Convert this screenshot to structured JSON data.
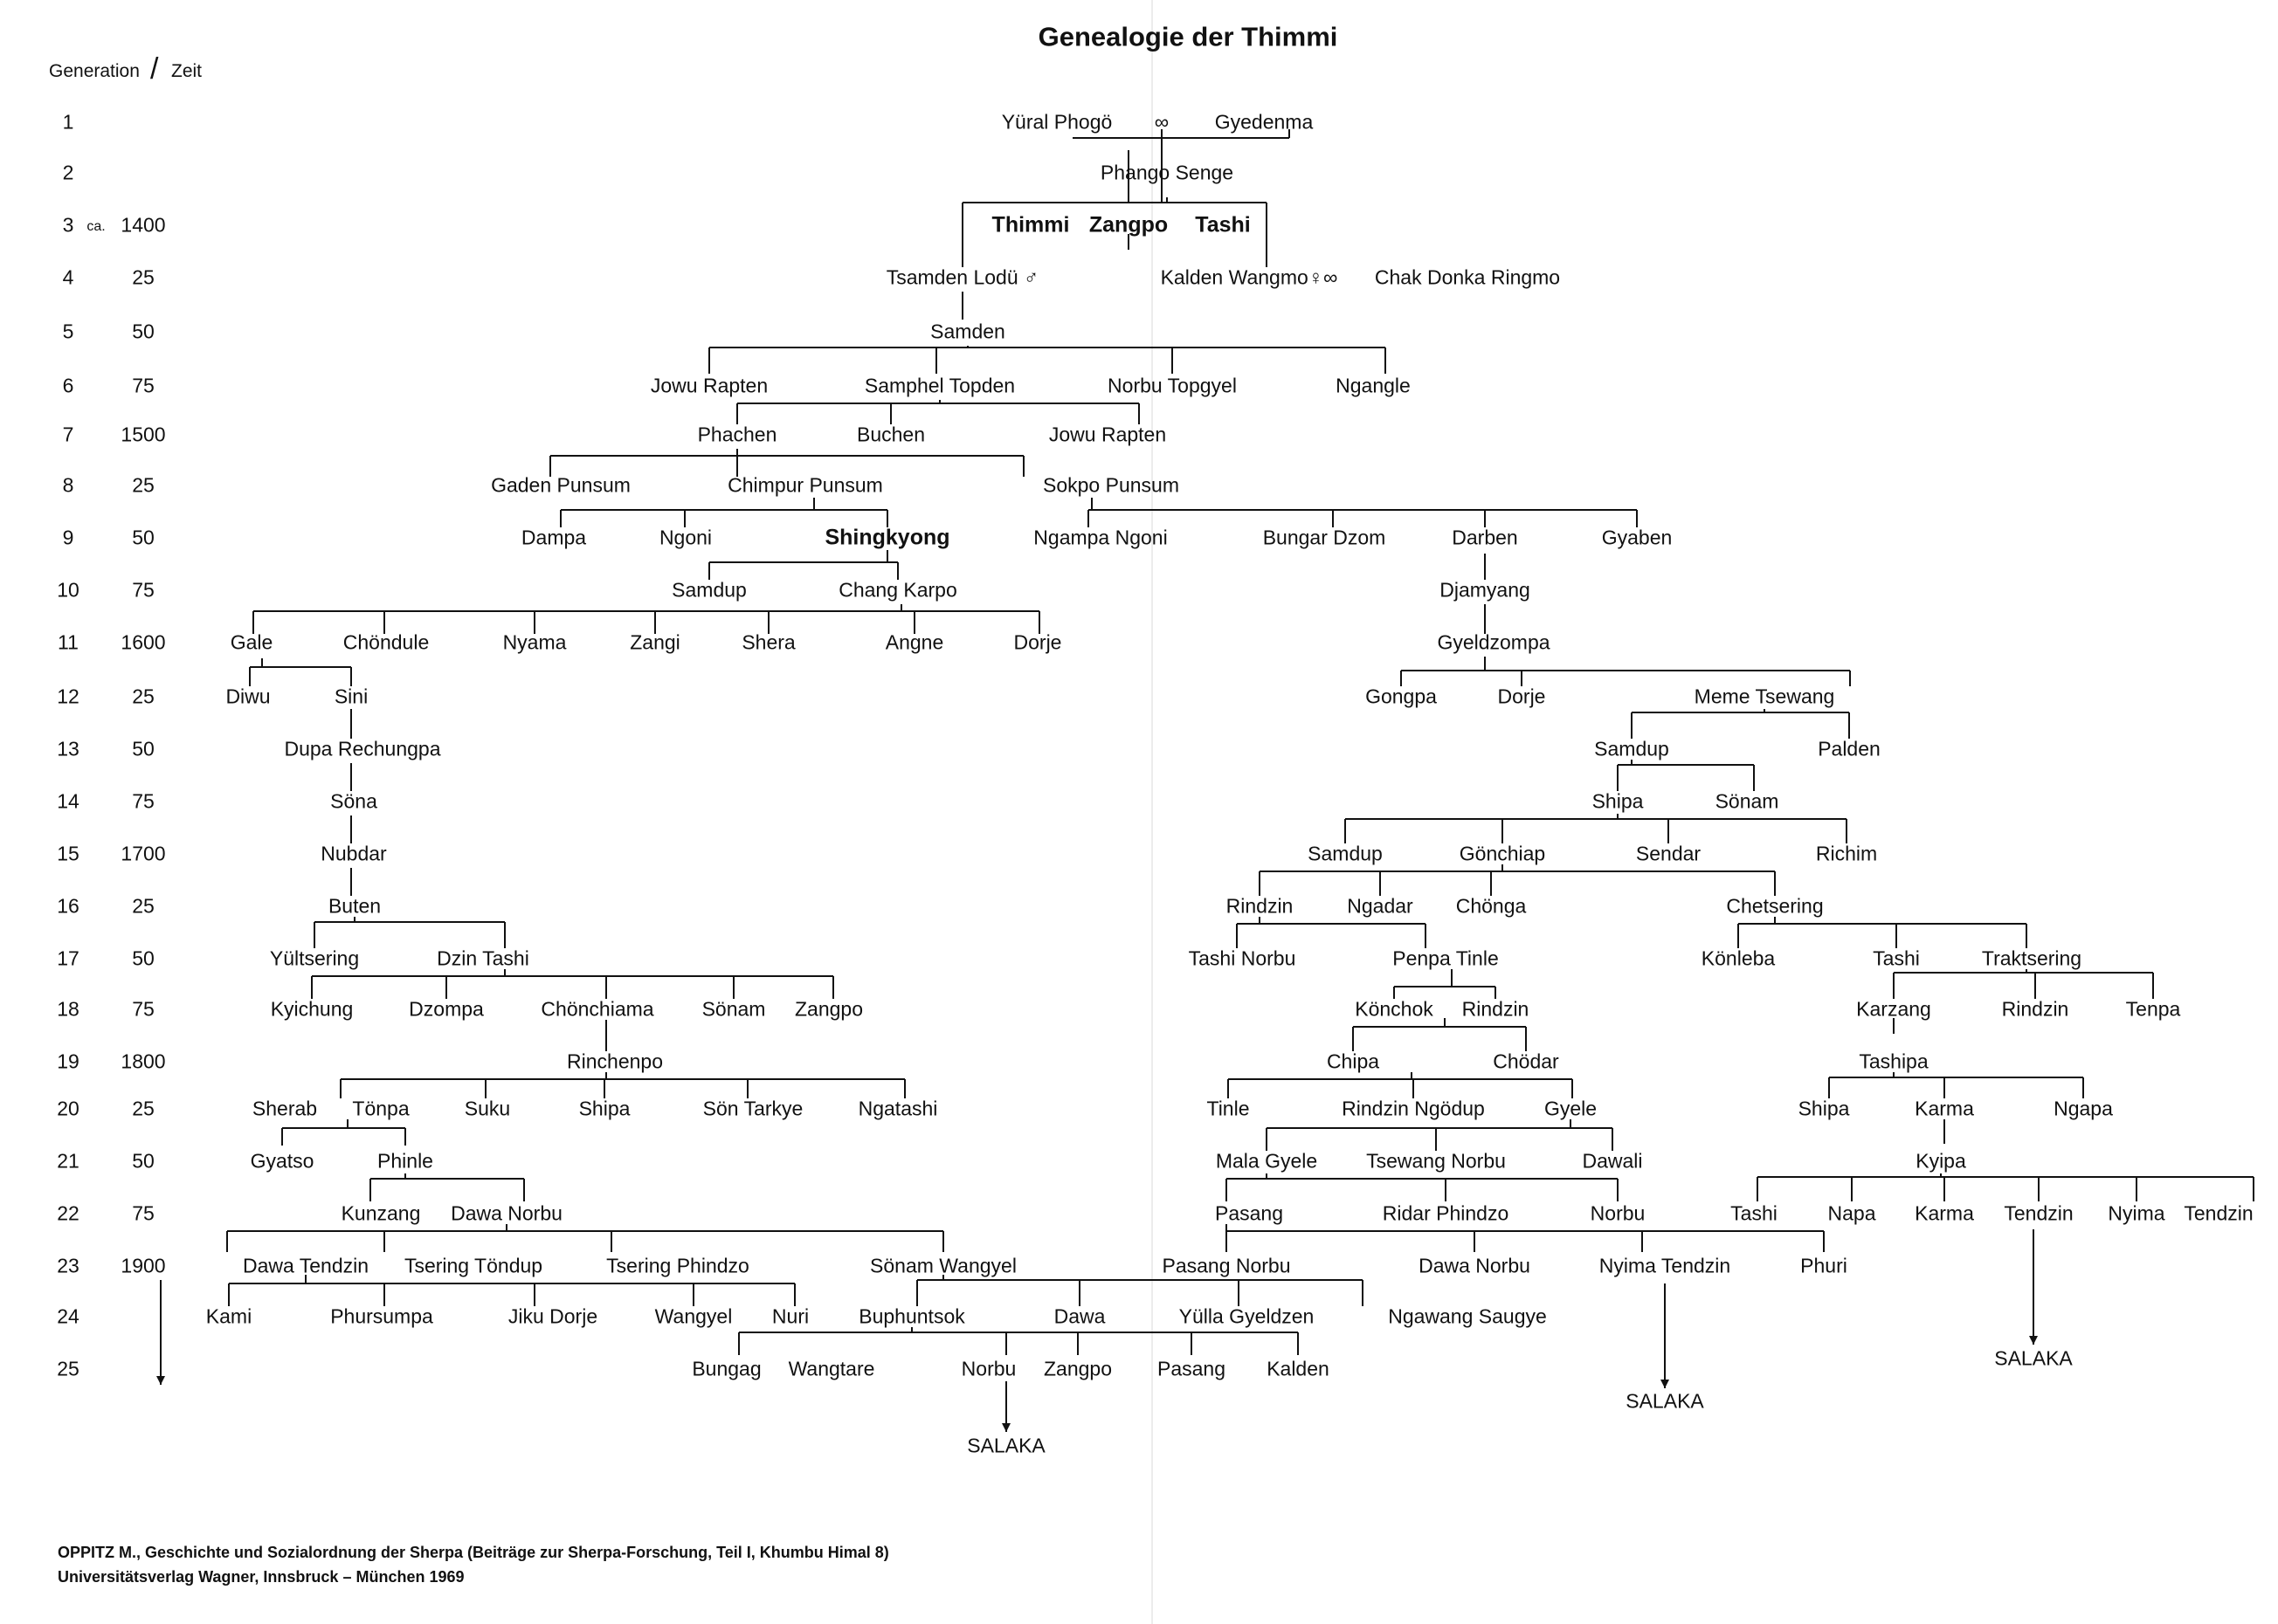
{
  "title": "Genealogie der Thimmi",
  "header": {
    "generation": "Generation",
    "slash": "/",
    "zeit": "Zeit"
  },
  "generations": [
    {
      "num": "1",
      "year": ""
    },
    {
      "num": "2",
      "year": ""
    },
    {
      "num": "3",
      "ca": "ca.",
      "year": "1400"
    },
    {
      "num": "4",
      "year": "25"
    },
    {
      "num": "5",
      "year": "50"
    },
    {
      "num": "6",
      "year": "75"
    },
    {
      "num": "7",
      "year": "1500"
    },
    {
      "num": "8",
      "year": "25"
    },
    {
      "num": "9",
      "year": "50"
    },
    {
      "num": "10",
      "year": "75"
    },
    {
      "num": "11",
      "year": "1600"
    },
    {
      "num": "12",
      "year": "25"
    },
    {
      "num": "13",
      "year": "50"
    },
    {
      "num": "14",
      "year": "75"
    },
    {
      "num": "15",
      "year": "1700"
    },
    {
      "num": "16",
      "year": "25"
    },
    {
      "num": "17",
      "year": "50"
    },
    {
      "num": "18",
      "year": "75"
    },
    {
      "num": "19",
      "year": "1800"
    },
    {
      "num": "20",
      "year": "25"
    },
    {
      "num": "21",
      "year": "50"
    },
    {
      "num": "22",
      "year": "75"
    },
    {
      "num": "23",
      "year": "1900"
    },
    {
      "num": "24",
      "year": ""
    },
    {
      "num": "25",
      "year": ""
    }
  ],
  "persons": {
    "g1_yural": "Yüral Phogö",
    "g1_marriage": "∞",
    "g1_gyedenma": "Gyedenma",
    "g2_phango": "Phango Senge",
    "g3_thimmi": "Thimmi",
    "g3_zangpo": "Zangpo",
    "g3_tashi": "Tashi",
    "g4_tsamden": "Tsamden Lodü ♂",
    "g4_kalden": "Kalden Wangmo♀∞",
    "g4_chak": "Chak Donka Ringmo",
    "g5_samden": "Samden",
    "g6_jowu": "Jowu Rapten",
    "g6_samphel": "Samphel Topden",
    "g6_norbu": "Norbu Topgyel",
    "g6_ngangle": "Ngangle",
    "g7_phachen": "Phachen",
    "g7_buchen": "Buchen",
    "g7_jowu": "Jowu Rapten",
    "g8_gaden": "Gaden Punsum",
    "g8_chimpur": "Chimpur Punsum",
    "g8_sokpo": "Sokpo Punsum",
    "g9_dampa": "Dampa",
    "g9_ngoni": "Ngoni",
    "g9_shingkyong": "Shingkyong",
    "g9_ngampa": "Ngampa Ngoni",
    "g9_bungar": "Bungar Dzom",
    "g9_darben": "Darben",
    "g9_gyaben": "Gyaben",
    "g10_samdup": "Samdup",
    "g10_chang": "Chang Karpo",
    "g10_djamyang": "Djamyang",
    "g11_gale": "Gale",
    "g11_chondule": "Chöndule",
    "g11_nyama": "Nyama",
    "g11_zangi": "Zangi",
    "g11_shera": "Shera",
    "g11_angne": "Angne",
    "g11_dorje": "Dorje",
    "g11_gyeldzompa": "Gyeldzompa",
    "g12_diwu": "Diwu",
    "g12_sini": "Sini",
    "g12_gongpa": "Gongpa",
    "g12_dorje": "Dorje",
    "g12_meme": "Meme Tsewang",
    "g13_dupa": "Dupa Rechungpa",
    "g13_samdup": "Samdup",
    "g13_palden": "Palden",
    "g14_sona": "Söna",
    "g14_shipa": "Shipa",
    "g14_sonam": "Sönam",
    "g15_nubdar": "Nubdar",
    "g15_samdup": "Samdup",
    "g15_gonchiap": "Gönchiap",
    "g15_sendar": "Sendar",
    "g15_richim": "Richim",
    "g16_buten": "Buten",
    "g16_rindzin": "Rindzin",
    "g16_ngadar": "Ngadar",
    "g16_chonga": "Chönga",
    "g16_chetsering": "Chetsering",
    "g17_yultsering": "Yültsering",
    "g17_dzintashi": "Dzin Tashi",
    "g17_tashinorbu": "Tashi Norbu",
    "g17_penpa": "Penpa Tinle",
    "g17_konleba": "Könleba",
    "g17_tashi": "Tashi",
    "g17_traktsering": "Traktsering",
    "g18_kyichung": "Kyichung",
    "g18_dzompa": "Dzompa",
    "g18_chonchiama": "Chönchiama",
    "g18_sonam": "Sönam",
    "g18_zangpo": "Zangpo",
    "g18_konchok": "Könchok",
    "g18_rindzin": "Rindzin",
    "g18_karzang": "Karzang",
    "g18_rindzin2": "Rindzin",
    "g18_tenpa": "Tenpa",
    "g19_rinchenpo": "Rinchenpo",
    "g19_chipa": "Chipa",
    "g19_chodar": "Chödar",
    "g19_tashipa": "Tashipa",
    "g20_sherab": "Sherab",
    "g20_tonpa": "Tönpa",
    "g20_suku": "Suku",
    "g20_shipa": "Shipa",
    "g20_son": "Sön Tarkye",
    "g20_ngatashi": "Ngatashi",
    "g20_tinle": "Tinle",
    "g20_rindzin": "Rindzin Ngödup",
    "g20_gyele": "Gyele",
    "g20_shipa2": "Shipa",
    "g20_karma": "Karma",
    "g20_ngapa": "Ngapa",
    "g21_gyatso": "Gyatso",
    "g21_phinle": "Phinle",
    "g21_mala": "Mala Gyele",
    "g21_tsewang": "Tsewang Norbu",
    "g21_dawali": "Dawali",
    "g21_kyipa": "Kyipa",
    "g22_kunzang": "Kunzang",
    "g22_dawa": "Dawa Norbu",
    "g22_pasang": "Pasang",
    "g22_ridar": "Ridar Phindzo",
    "g22_norbu": "Norbu",
    "g22_tashi": "Tashi",
    "g22_napa": "Napa",
    "g22_karma": "Karma",
    "g22_tendzin": "Tendzin",
    "g22_nyima": "Nyima",
    "g22_tendzin2": "Tendzin",
    "g23_dawatendzin": "Dawa Tendzin",
    "g23_tsering": "Tsering Töndup",
    "g23_tseringp": "Tsering Phindzo",
    "g23_sonam": "Sönam Wangyel",
    "g23_pasang": "Pasang Norbu",
    "g23_dawa": "Dawa Norbu",
    "g23_nyima": "Nyima Tendzin",
    "g23_phuri": "Phuri",
    "g24_kami": "Kami",
    "g24_phursumpa": "Phursumpa",
    "g24_jiku": "Jiku Dorje",
    "g24_wangyel": "Wangyel",
    "g24_nuri": "Nuri",
    "g24_buphuntsok": "Buphuntsok",
    "g24_dawa": "Dawa",
    "g24_yulla": "Yülla Gyeldzen",
    "g24_ngawang": "Ngawang Saugye",
    "g25_bungag": "Bungag",
    "g25_wangtare": "Wangtare",
    "g25_norbu": "Norbu",
    "g25_zangpo": "Zangpo",
    "g25_pasang": "Pasang",
    "g25_kalden": "Kalden",
    "salaka_1": "SALAKA",
    "salaka_2": "SALAKA",
    "salaka_3": "SALAKA"
  },
  "footer": {
    "line1": "OPPITZ M., Geschichte und Sozialordnung der Sherpa (Beiträge zur Sherpa-Forschung, Teil I, Khumbu Himal 8)",
    "line2": "Universitätsverlag Wagner, Innsbruck – München 1969"
  }
}
